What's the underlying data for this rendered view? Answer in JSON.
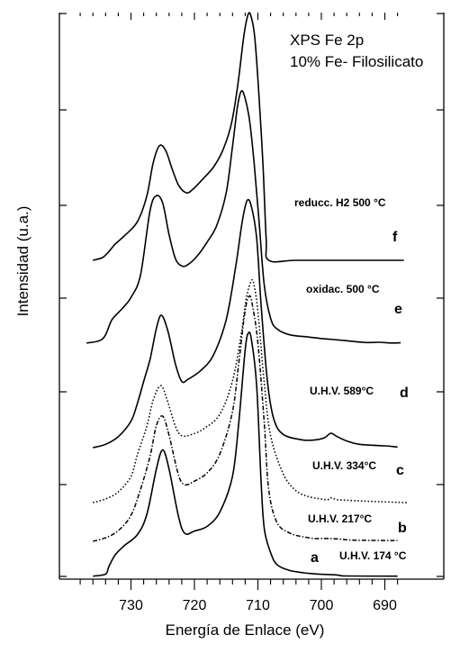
{
  "chart_data": {
    "type": "line",
    "title_lines": [
      "XPS  Fe 2p",
      "10% Fe- Filosilicato"
    ],
    "xlabel": "Energía de Enlace (eV)",
    "ylabel": "Intensidad (u.a.)",
    "x_reversed": true,
    "xlim": [
      739,
      687
    ],
    "xticks": [
      730,
      720,
      710,
      700,
      690
    ],
    "xtick_labels": [
      "730",
      "720",
      "710",
      "700",
      "690"
    ],
    "series": [
      {
        "letter": "a",
        "label": "U.H.V. 174 °C",
        "style": "solid",
        "baseline": 0.0,
        "points": [
          [
            736,
            0.1
          ],
          [
            734,
            1.0
          ],
          [
            733.5,
            4.0
          ],
          [
            732.5,
            9.0
          ],
          [
            731,
            13.0
          ],
          [
            729,
            17.5
          ],
          [
            727.5,
            26.0
          ],
          [
            726,
            45.0
          ],
          [
            725,
            53.0
          ],
          [
            724,
            45.0
          ],
          [
            722.5,
            25.0
          ],
          [
            721.5,
            18.0
          ],
          [
            720,
            19.0
          ],
          [
            718,
            21.0
          ],
          [
            716,
            27.0
          ],
          [
            714,
            42.0
          ],
          [
            713,
            65.0
          ],
          [
            712,
            95.0
          ],
          [
            711.5,
            102.0
          ],
          [
            711,
            99.0
          ],
          [
            710.2,
            80.0
          ],
          [
            709.5,
            40.0
          ],
          [
            709,
            20.0
          ],
          [
            708,
            10.0
          ],
          [
            707,
            5.0
          ],
          [
            705,
            2.5
          ],
          [
            702,
            1.3
          ],
          [
            700,
            0.9
          ],
          [
            698,
            0.7
          ],
          [
            697,
            0.4
          ],
          [
            696,
            0.2
          ],
          [
            688,
            0.1
          ]
        ]
      },
      {
        "letter": "b",
        "label": "U.H.V. 217°C",
        "style": "dashdot",
        "baseline": 0.0,
        "points": [
          [
            736,
            0.0
          ],
          [
            734,
            1.5
          ],
          [
            732,
            4.5
          ],
          [
            730,
            11.0
          ],
          [
            728.5,
            22.0
          ],
          [
            727,
            36.0
          ],
          [
            726,
            49.0
          ],
          [
            725,
            53.0
          ],
          [
            724,
            45.0
          ],
          [
            722.5,
            28.0
          ],
          [
            721.5,
            24.0
          ],
          [
            720,
            25.5
          ],
          [
            718,
            29.0
          ],
          [
            716,
            37.0
          ],
          [
            714,
            55.0
          ],
          [
            713,
            76.0
          ],
          [
            712,
            98.0
          ],
          [
            711.3,
            104.0
          ],
          [
            710.8,
            99.0
          ],
          [
            710,
            84.0
          ],
          [
            709,
            50.0
          ],
          [
            708.3,
            22.0
          ],
          [
            707,
            8.0
          ],
          [
            705,
            3.5
          ],
          [
            703,
            2.0
          ],
          [
            701,
            1.2
          ],
          [
            699,
            1.2
          ],
          [
            697,
            0.9
          ],
          [
            695,
            0.5
          ],
          [
            688,
            0.3
          ]
        ]
      },
      {
        "letter": "c",
        "label": "U.H.V. 334°C",
        "style": "dotted",
        "baseline": 0.0,
        "points": [
          [
            736,
            0.0
          ],
          [
            734,
            1.5
          ],
          [
            732,
            4.5
          ],
          [
            730,
            11.0
          ],
          [
            729,
            20.0
          ],
          [
            727.5,
            32.0
          ],
          [
            726.5,
            43.0
          ],
          [
            725.3,
            49.0
          ],
          [
            724.3,
            43.0
          ],
          [
            723,
            32.0
          ],
          [
            722,
            28.0
          ],
          [
            720.5,
            28.5
          ],
          [
            718.5,
            31.0
          ],
          [
            716,
            37.0
          ],
          [
            714,
            51.0
          ],
          [
            712.6,
            71.0
          ],
          [
            711.8,
            86.0
          ],
          [
            711,
            93.0
          ],
          [
            710.6,
            91.0
          ],
          [
            710,
            80.0
          ],
          [
            709,
            50.0
          ],
          [
            708,
            28.0
          ],
          [
            706,
            12.0
          ],
          [
            704,
            5.0
          ],
          [
            702,
            2.5
          ],
          [
            700,
            1.5
          ],
          [
            699,
            1.2
          ],
          [
            698.5,
            2.0
          ],
          [
            697.5,
            1.2
          ],
          [
            696,
            1.0
          ],
          [
            694,
            0.7
          ],
          [
            692,
            0.5
          ],
          [
            690,
            0.3
          ],
          [
            686.5,
            0.0
          ]
        ]
      },
      {
        "letter": "d",
        "label": "U.H.V. 589°C",
        "style": "solid",
        "baseline": 0.0,
        "points": [
          [
            736,
            0.0
          ],
          [
            734,
            1.5
          ],
          [
            732,
            5.0
          ],
          [
            730,
            12.0
          ],
          [
            729,
            20.0
          ],
          [
            728,
            30.0
          ],
          [
            727,
            40.0
          ],
          [
            726,
            54.0
          ],
          [
            725.2,
            60.0
          ],
          [
            724.2,
            53.0
          ],
          [
            723,
            38.0
          ],
          [
            722,
            30.0
          ],
          [
            721,
            31.0
          ],
          [
            719,
            35.0
          ],
          [
            717,
            42.0
          ],
          [
            715,
            58.0
          ],
          [
            713.5,
            82.0
          ],
          [
            712.5,
            102.0
          ],
          [
            711.7,
            112.0
          ],
          [
            711,
            109.0
          ],
          [
            710.2,
            95.0
          ],
          [
            709.5,
            65.0
          ],
          [
            708.5,
            30.0
          ],
          [
            707.5,
            13.0
          ],
          [
            706,
            6.0
          ],
          [
            703,
            3.5
          ],
          [
            701,
            3.5
          ],
          [
            699.5,
            4.5
          ],
          [
            698.5,
            6.5
          ],
          [
            697.5,
            5.0
          ],
          [
            696,
            3.0
          ],
          [
            694,
            1.5
          ],
          [
            690,
            0.8
          ],
          [
            688,
            0.3
          ]
        ]
      },
      {
        "letter": "e",
        "label": "oxidac. 500 °C",
        "style": "solid",
        "baseline": 0.0,
        "points": [
          [
            737,
            -0.5
          ],
          [
            735,
            1.0
          ],
          [
            734,
            5.0
          ],
          [
            733,
            15.0
          ],
          [
            731.5,
            22.0
          ],
          [
            730,
            30.0
          ],
          [
            728.5,
            45.0
          ],
          [
            727,
            88.0
          ],
          [
            726,
            98.0
          ],
          [
            725,
            93.0
          ],
          [
            724,
            72.0
          ],
          [
            723,
            56.0
          ],
          [
            722,
            51.0
          ],
          [
            721,
            52.0
          ],
          [
            719.5,
            58.0
          ],
          [
            718,
            67.0
          ],
          [
            716.5,
            78.0
          ],
          [
            715,
            100.0
          ],
          [
            714,
            131.0
          ],
          [
            713.2,
            158.0
          ],
          [
            712.6,
            168.0
          ],
          [
            712,
            163.0
          ],
          [
            711.3,
            148.0
          ],
          [
            710.6,
            120.0
          ],
          [
            709.8,
            80.0
          ],
          [
            709,
            38.0
          ],
          [
            708,
            16.0
          ],
          [
            707,
            9.0
          ],
          [
            705,
            5.0
          ],
          [
            702,
            3.5
          ],
          [
            700,
            2.5
          ],
          [
            698,
            1.8
          ],
          [
            696,
            1.0
          ],
          [
            693,
            -0.2
          ],
          [
            691,
            0.0
          ],
          [
            689,
            -0.5
          ],
          [
            687.5,
            -0.3
          ]
        ]
      },
      {
        "letter": "f",
        "label": "reducc. H2   500 °C",
        "style": "solid",
        "baseline": 0.0,
        "points": [
          [
            736,
            0.0
          ],
          [
            734.5,
            2.5
          ],
          [
            733.5,
            8.0
          ],
          [
            732.5,
            15.0
          ],
          [
            731,
            23.0
          ],
          [
            729,
            36.0
          ],
          [
            727.5,
            60.0
          ],
          [
            726.5,
            91.0
          ],
          [
            725.5,
            107.0
          ],
          [
            724.5,
            102.0
          ],
          [
            723.5,
            85.0
          ],
          [
            722.5,
            70.0
          ],
          [
            721.3,
            63.0
          ],
          [
            720.3,
            66.0
          ],
          [
            718.5,
            77.0
          ],
          [
            717,
            87.0
          ],
          [
            715.5,
            103.0
          ],
          [
            714.2,
            127.0
          ],
          [
            713.2,
            162.0
          ],
          [
            712.2,
            210.0
          ],
          [
            711.5,
            230.0
          ],
          [
            711,
            226.0
          ],
          [
            710.5,
            208.0
          ],
          [
            709.9,
            160.0
          ],
          [
            709.2,
            90.0
          ],
          [
            708.7,
            20.0
          ],
          [
            708.3,
            0.0
          ],
          [
            704,
            0.0
          ],
          [
            696,
            0.0
          ],
          [
            687,
            0.0
          ]
        ]
      }
    ]
  }
}
